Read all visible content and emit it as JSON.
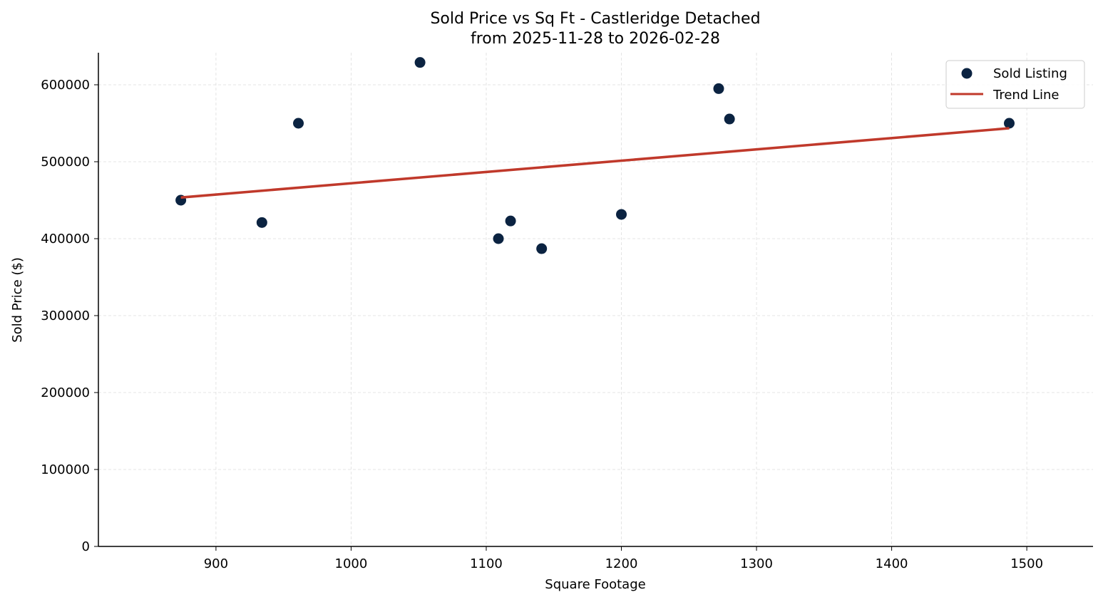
{
  "chart_data": {
    "type": "scatter",
    "title": "Sold Price vs Sq Ft - Castleridge Detached",
    "subtitle": "from 2025-11-28 to 2026-02-28",
    "xlabel": "Square Footage",
    "ylabel": "Sold Price ($)",
    "xlim": [
      813,
      1549
    ],
    "ylim": [
      0,
      641667
    ],
    "xticks": [
      900,
      1000,
      1100,
      1200,
      1300,
      1400,
      1500
    ],
    "yticks": [
      0,
      100000,
      200000,
      300000,
      400000,
      500000,
      600000
    ],
    "grid": true,
    "legend_position": "top-right",
    "series": [
      {
        "name": "Sold Listing",
        "type": "scatter",
        "color": "#0b2341",
        "points": [
          [
            874,
            450000
          ],
          [
            934,
            421000
          ],
          [
            961,
            550000
          ],
          [
            1051,
            629000
          ],
          [
            1109,
            400000
          ],
          [
            1118,
            423000
          ],
          [
            1141,
            387000
          ],
          [
            1200,
            431500
          ],
          [
            1272,
            595000
          ],
          [
            1280,
            555500
          ],
          [
            1487,
            550000
          ]
        ]
      },
      {
        "name": "Trend Line",
        "type": "line",
        "color": "#c0392b",
        "points": [
          [
            874,
            453500
          ],
          [
            1487,
            543500
          ]
        ]
      }
    ]
  }
}
